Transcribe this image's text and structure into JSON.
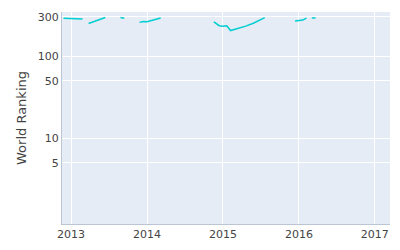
{
  "chart_data": {
    "type": "line",
    "y_label": "World Ranking",
    "log": "y",
    "grid": true,
    "color": "#00ced1",
    "x": [
      2012.9,
      2012.98,
      2013.06,
      2013.15,
      null,
      2013.23,
      2013.3,
      2013.37,
      2013.45,
      null,
      2013.65,
      2013.7,
      null,
      2013.9,
      2013.95,
      2014.0,
      2014.05,
      2014.12,
      2014.18,
      null,
      2014.88,
      2014.92,
      2014.95,
      2015.0,
      2015.05,
      2015.1,
      2015.15,
      2015.25,
      2015.3,
      2015.4,
      2015.5,
      2015.55,
      null,
      2015.95,
      2016.0,
      2016.05,
      2016.1,
      null,
      2016.17,
      2016.22
    ],
    "values": [
      290,
      288,
      285,
      283,
      null,
      250,
      262,
      275,
      295,
      null,
      295,
      290,
      null,
      258,
      265,
      262,
      272,
      282,
      292,
      null,
      262,
      245,
      235,
      232,
      235,
      205,
      212,
      222,
      232,
      252,
      278,
      295,
      null,
      268,
      270,
      275,
      290,
      null,
      292,
      292
    ],
    "xlim": [
      2012.88,
      2017.2
    ],
    "xticks": [
      2013,
      2014,
      2015,
      2016,
      2017
    ],
    "ylim": [
      0.9,
      345
    ],
    "yticks": [
      5,
      10,
      50,
      100,
      300
    ]
  }
}
